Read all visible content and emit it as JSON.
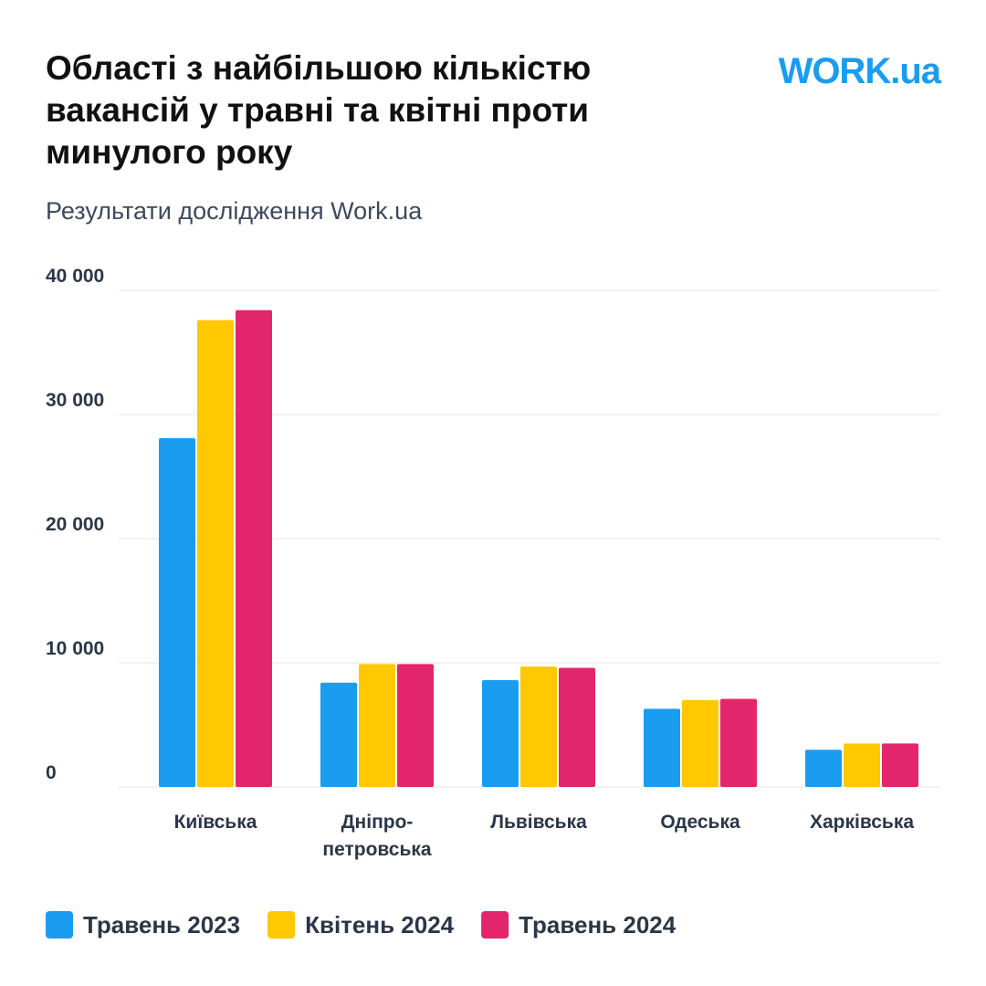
{
  "chart_data": {
    "type": "bar",
    "title": "Області з найбільшою кількістю вакансій у травні та квітні проти минулого року",
    "subtitle": "Результати дослідження Work.ua",
    "logo": "WORK.ua",
    "categories": [
      "Київська",
      "Дніпро-\nпетровська",
      "Львівська",
      "Одеська",
      "Харківська"
    ],
    "series": [
      {
        "name": "Травень 2023",
        "color": "#1a9cf0",
        "values": [
          28100,
          8400,
          8600,
          6300,
          3000
        ]
      },
      {
        "name": "Квітень 2024",
        "color": "#ffc800",
        "values": [
          37600,
          9900,
          9700,
          7000,
          3500
        ]
      },
      {
        "name": "Травень 2024",
        "color": "#e3256b",
        "values": [
          38400,
          9900,
          9600,
          7100,
          3500
        ]
      }
    ],
    "ylim": [
      0,
      40000
    ],
    "yticks": [
      0,
      {
        "value": 10000,
        "label": "10 000"
      },
      {
        "value": 20000,
        "label": "20 000"
      },
      {
        "value": 30000,
        "label": "30 000"
      },
      {
        "value": 40000,
        "label": "40 000"
      }
    ],
    "grid": true
  }
}
